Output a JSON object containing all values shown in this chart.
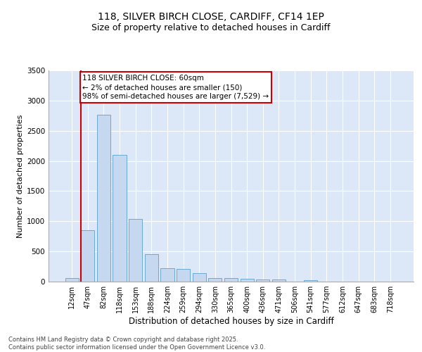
{
  "title_line1": "118, SILVER BIRCH CLOSE, CARDIFF, CF14 1EP",
  "title_line2": "Size of property relative to detached houses in Cardiff",
  "xlabel": "Distribution of detached houses by size in Cardiff",
  "ylabel": "Number of detached properties",
  "categories": [
    "12sqm",
    "47sqm",
    "82sqm",
    "118sqm",
    "153sqm",
    "188sqm",
    "224sqm",
    "259sqm",
    "294sqm",
    "330sqm",
    "365sqm",
    "400sqm",
    "436sqm",
    "471sqm",
    "506sqm",
    "541sqm",
    "577sqm",
    "612sqm",
    "647sqm",
    "683sqm",
    "718sqm"
  ],
  "values": [
    60,
    850,
    2760,
    2100,
    1040,
    450,
    220,
    210,
    135,
    60,
    55,
    50,
    35,
    30,
    0,
    20,
    0,
    0,
    0,
    0,
    0
  ],
  "bar_color": "#c5d8f0",
  "bar_edge_color": "#6aaad4",
  "vline_color": "#cc0000",
  "annotation_line1": "118 SILVER BIRCH CLOSE: 60sqm",
  "annotation_line2": "← 2% of detached houses are smaller (150)",
  "annotation_line3": "98% of semi-detached houses are larger (7,529) →",
  "annotation_box_color": "#cc0000",
  "ylim": [
    0,
    3500
  ],
  "background_color": "#dce8f8",
  "grid_color": "#ffffff",
  "footer_text": "Contains HM Land Registry data © Crown copyright and database right 2025.\nContains public sector information licensed under the Open Government Licence v3.0.",
  "title_fontsize": 10,
  "subtitle_fontsize": 9,
  "tick_fontsize": 7,
  "ylabel_fontsize": 8,
  "xlabel_fontsize": 8.5,
  "footer_fontsize": 6,
  "annot_fontsize": 7.5
}
